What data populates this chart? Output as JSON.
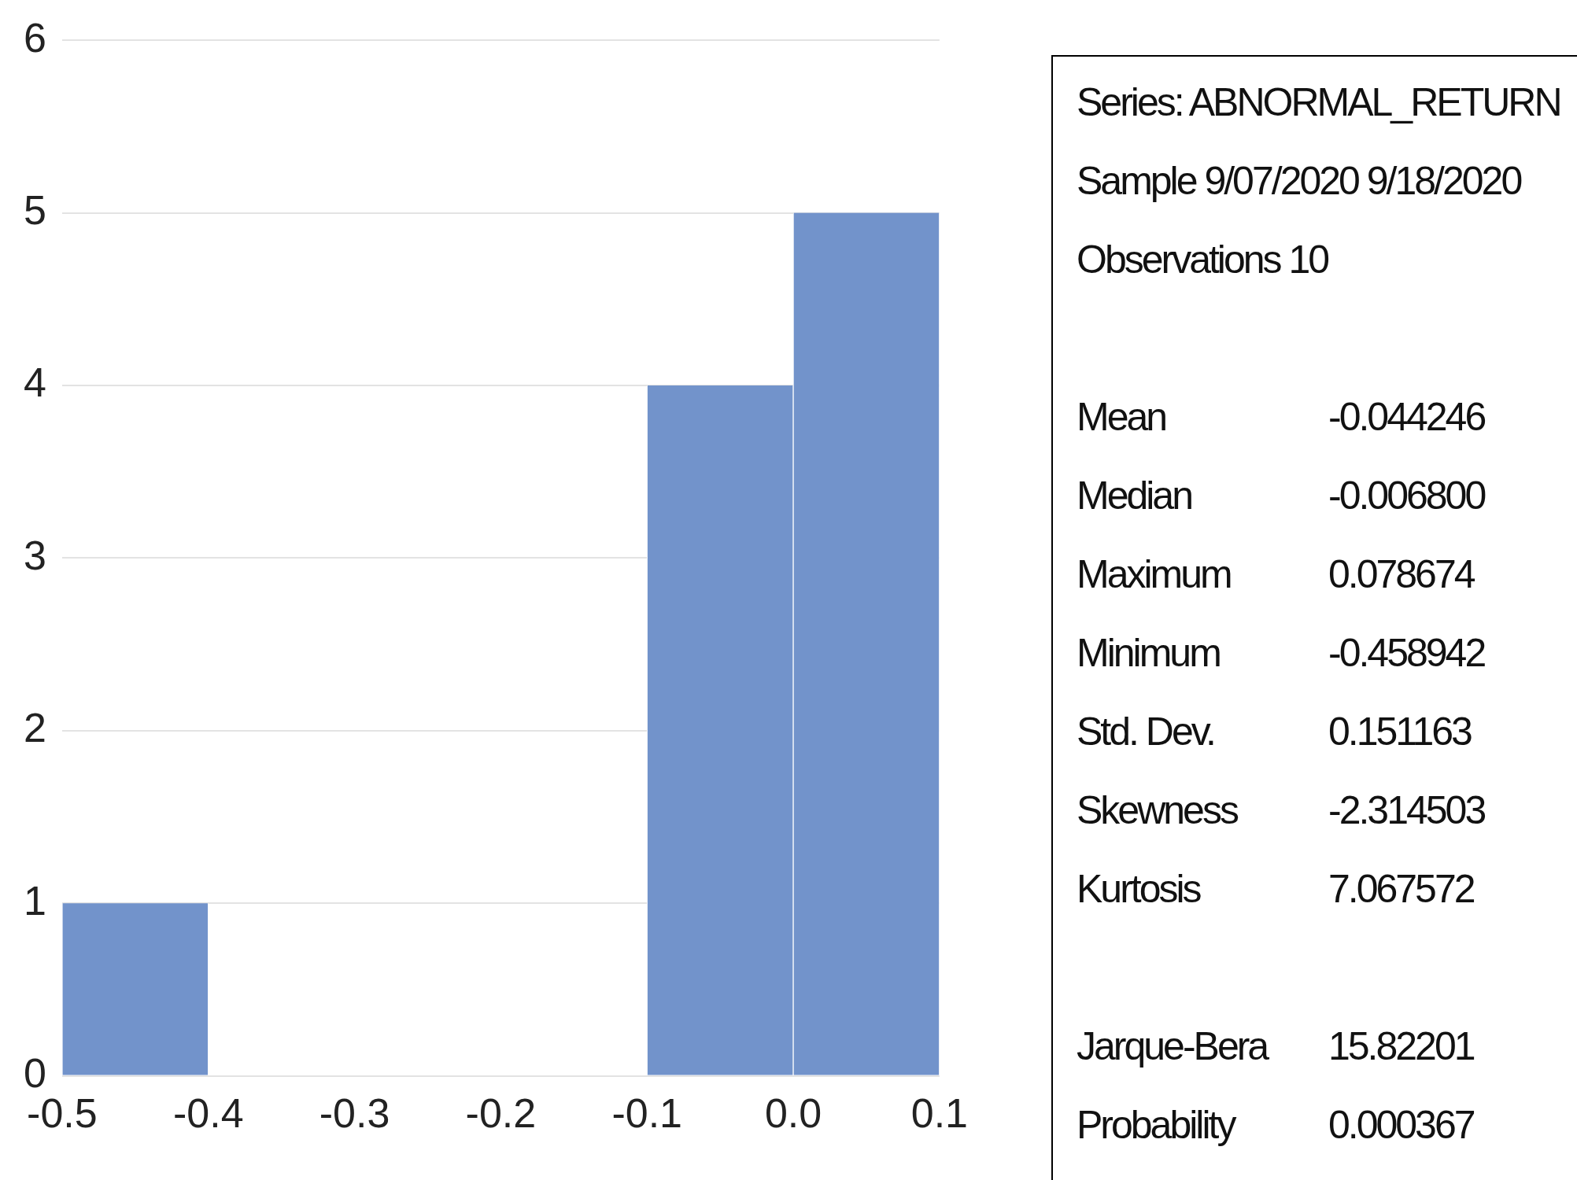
{
  "chart_data": [
    {
      "type": "histogram",
      "bins": [
        -0.5,
        -0.4,
        -0.3,
        -0.2,
        -0.1,
        0.0,
        0.1
      ],
      "values": [
        1,
        0,
        0,
        0,
        4,
        5
      ],
      "color": "#7293cb",
      "xlim": [
        -0.5,
        0.1
      ],
      "xticks": [
        -0.5,
        -0.4,
        -0.3,
        -0.2,
        -0.1,
        {
          "value": 0,
          "label": "0.0"
        },
        0.1
      ],
      "ylim": [
        0,
        6
      ],
      "yticks": [
        0,
        1,
        2,
        3,
        4,
        5,
        6
      ],
      "grid": "y",
      "legend": false
    },
    {
      "type": "other",
      "annotations": [
        "Series: ABNORMAL_RETURN",
        "Sample 9/07/2020 9/18/2020",
        "Observations 10"
      ],
      "categories": [
        null,
        "Mean",
        "Median",
        "Maximum",
        "Minimum",
        "Std. Dev.",
        "Skewness",
        "Kurtosis",
        null,
        "Jarque-Bera",
        "Probability"
      ],
      "value_labels": [
        null,
        "-0.044246",
        "-0.006800",
        "0.078674",
        "-0.458942",
        "0.151163",
        "-2.314503",
        "7.067572",
        null,
        "15.82201",
        "0.000367"
      ]
    }
  ]
}
